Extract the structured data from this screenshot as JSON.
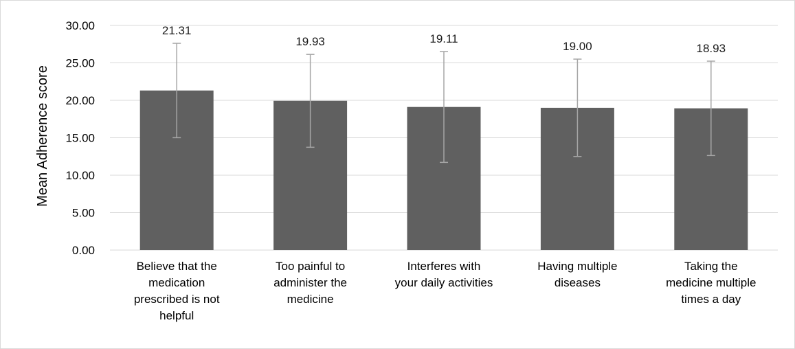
{
  "chart_data": {
    "type": "bar",
    "title": "",
    "xlabel": "",
    "ylabel": "Mean Adherence score",
    "ylim": [
      0,
      30
    ],
    "yticks": [
      "0.00",
      "5.00",
      "10.00",
      "15.00",
      "20.00",
      "25.00",
      "30.00"
    ],
    "ytick_values": [
      0,
      5,
      10,
      15,
      20,
      25,
      30
    ],
    "grid": true,
    "legend": "none",
    "bar_color": "#606060",
    "error_bar_color": "#a6a6a6",
    "grid_color": "#d9d9d9",
    "categories": [
      [
        "Believe that the",
        "medication",
        "prescribed is not",
        "helpful"
      ],
      [
        "Too painful to",
        "administer the",
        "medicine"
      ],
      [
        "Interferes with",
        "your daily activities"
      ],
      [
        "Having multiple",
        "diseases"
      ],
      [
        "Taking the",
        "medicine multiple",
        "times a day"
      ]
    ],
    "values": [
      21.31,
      19.93,
      19.11,
      19.0,
      18.93
    ],
    "data_labels": [
      "21.31",
      "19.93",
      "19.11",
      "19.00",
      "18.93"
    ],
    "error": [
      6.3,
      6.2,
      7.4,
      6.5,
      6.3
    ]
  }
}
